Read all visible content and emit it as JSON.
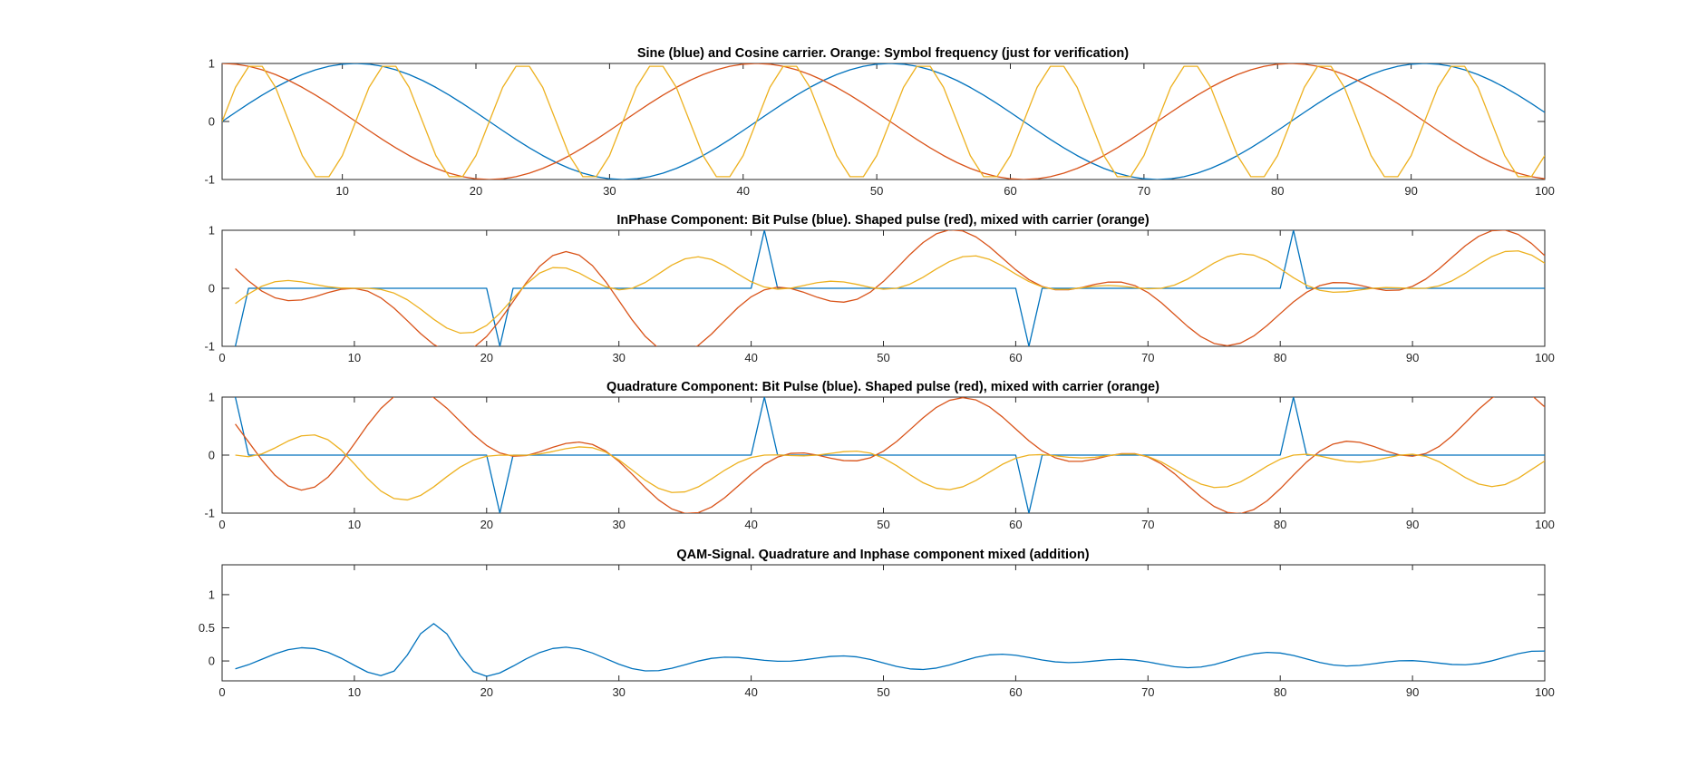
{
  "figure": {
    "background": "#ffffff",
    "axis_color": "#262626"
  },
  "chart_data": [
    {
      "type": "line",
      "title": "Sine (blue) and Cosine carrier. Orange: Symbol frequency (just for verification)",
      "xlim": [
        1,
        100
      ],
      "ylim": [
        -1,
        1
      ],
      "xticks": [
        10,
        20,
        30,
        40,
        50,
        60,
        70,
        80,
        90,
        100
      ],
      "yticks": [
        -1,
        0,
        1
      ],
      "xtick_labels": [
        "10",
        "20",
        "30",
        "40",
        "50",
        "60",
        "70",
        "80",
        "90",
        "100"
      ],
      "ytick_labels": [
        "-1",
        "0",
        "1"
      ],
      "series": [
        {
          "color": "#0072BD",
          "formula": "sin(2*pi*(n-1)/40)",
          "n_range": [
            1,
            100
          ]
        },
        {
          "color": "#D95319",
          "formula": "cos(2*pi*(n-1)/40)",
          "n_range": [
            1,
            100
          ]
        },
        {
          "color": "#EDB120",
          "formula": "sin(2*pi*(n-1)/10)",
          "n_range": [
            1,
            100
          ]
        }
      ]
    },
    {
      "type": "line",
      "title": "InPhase Component: Bit Pulse (blue). Shaped pulse (red), mixed with carrier (orange)",
      "xlim": [
        0,
        100
      ],
      "ylim": [
        -1,
        1
      ],
      "xticks": [
        0,
        10,
        20,
        30,
        40,
        50,
        60,
        70,
        80,
        90,
        100
      ],
      "yticks": [
        -1,
        0,
        1
      ],
      "xtick_labels": [
        "0",
        "10",
        "20",
        "30",
        "40",
        "50",
        "60",
        "70",
        "80",
        "90",
        "100"
      ],
      "ytick_labels": [
        "-1",
        "0",
        "1"
      ],
      "series": [
        {
          "color": "#0072BD",
          "impulses": [
            [
              1,
              -1
            ],
            [
              21,
              -1
            ],
            [
              41,
              1
            ],
            [
              61,
              -1
            ],
            [
              81,
              1
            ]
          ],
          "n_range": [
            1,
            100
          ]
        },
        {
          "color": "#D95319",
          "formula": "sum(a_k * sinc((n-16-20k)/6.5))",
          "n_range": [
            1,
            100
          ]
        },
        {
          "color": "#EDB120",
          "formula": "shaped * sin(carrier)",
          "n_range": [
            1,
            100
          ]
        }
      ]
    },
    {
      "type": "line",
      "title": "Quadrature Component: Bit Pulse (blue). Shaped pulse (red), mixed with carrier (orange)",
      "xlim": [
        0,
        100
      ],
      "ylim": [
        -1,
        1
      ],
      "xticks": [
        0,
        10,
        20,
        30,
        40,
        50,
        60,
        70,
        80,
        90,
        100
      ],
      "yticks": [
        -1,
        0,
        1
      ],
      "xtick_labels": [
        "0",
        "10",
        "20",
        "30",
        "40",
        "50",
        "60",
        "70",
        "80",
        "90",
        "100"
      ],
      "ytick_labels": [
        "-1",
        "0",
        "1"
      ],
      "series": [
        {
          "color": "#0072BD",
          "impulses": [
            [
              1,
              1
            ],
            [
              21,
              -1
            ],
            [
              41,
              1
            ],
            [
              61,
              -1
            ],
            [
              81,
              1
            ]
          ],
          "n_range": [
            1,
            100
          ]
        },
        {
          "color": "#D95319",
          "formula": "sum(b_k * sinc((n-16-20k)/6.5))",
          "n_range": [
            1,
            100
          ]
        },
        {
          "color": "#EDB120",
          "formula": "shaped * cos(carrier)",
          "n_range": [
            1,
            100
          ]
        }
      ]
    },
    {
      "type": "line",
      "title": "QAM-Signal. Quadrature and Inphase component mixed (addition)",
      "xlim": [
        0,
        100
      ],
      "ylim": [
        -0.3,
        1.45
      ],
      "xticks": [
        0,
        10,
        20,
        30,
        40,
        50,
        60,
        70,
        80,
        90,
        100
      ],
      "yticks": [
        0,
        0.5,
        1
      ],
      "xtick_labels": [
        "0",
        "10",
        "20",
        "30",
        "40",
        "50",
        "60",
        "70",
        "80",
        "90",
        "100"
      ],
      "ytick_labels": [
        "0",
        "0.5",
        "1"
      ],
      "series": [
        {
          "color": "#0072BD",
          "formula": "inphase_mixed + quadrature_mixed",
          "n_range": [
            1,
            100
          ]
        }
      ]
    }
  ]
}
